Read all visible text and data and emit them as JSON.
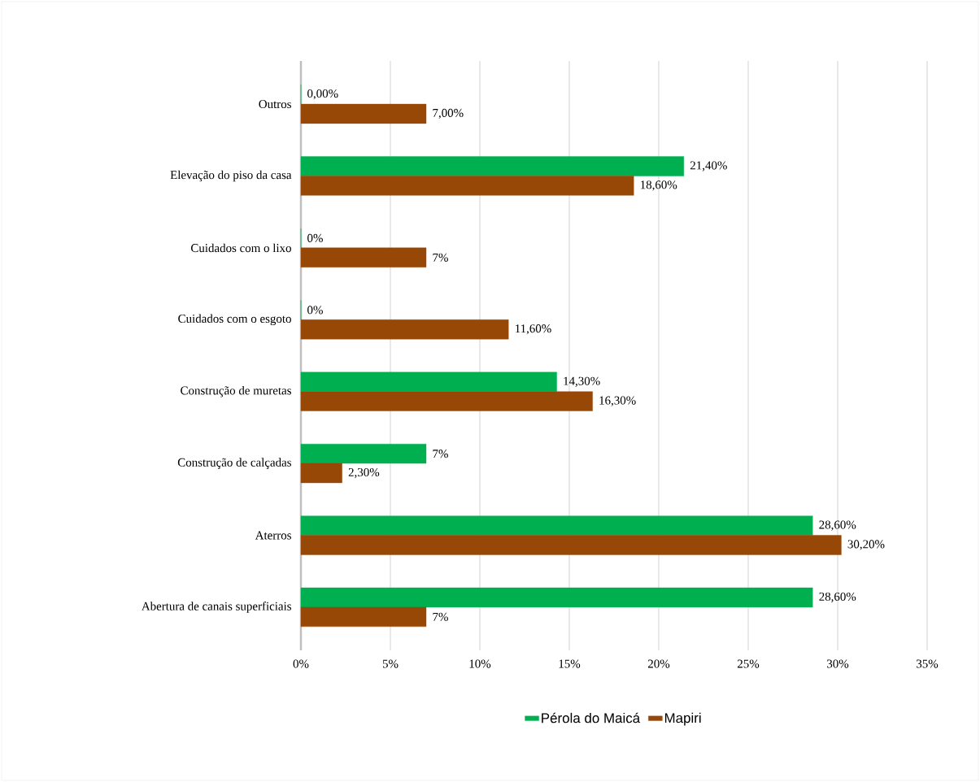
{
  "chart_data": {
    "type": "bar",
    "orientation": "horizontal",
    "categories": [
      "Outros",
      "Elevação do piso da casa",
      "Cuidados com o lixo",
      "Cuidados com o esgoto",
      "Construção de muretas",
      "Construção de calçadas",
      "Aterros",
      "Abertura de canais superficiais"
    ],
    "series": [
      {
        "name": "Pérola do Maicá",
        "color": "#00b050",
        "values": [
          0,
          21.4,
          0,
          0,
          14.3,
          7,
          28.6,
          28.6
        ],
        "value_labels": [
          "0,00%",
          "21,40%",
          "0%",
          "0%",
          "14,30%",
          "7%",
          "28,60%",
          "28,60%"
        ]
      },
      {
        "name": "Mapiri",
        "color": "#974706",
        "values": [
          7,
          18.6,
          7,
          11.6,
          16.3,
          2.3,
          30.2,
          7
        ],
        "value_labels": [
          "7,00%",
          "18,60%",
          "7%",
          "11,60%",
          "16,30%",
          "2,30%",
          "30,20%",
          "7%"
        ]
      }
    ],
    "xlim": [
      0,
      35
    ],
    "xticks": [
      {
        "value": 0,
        "label": "0%"
      },
      {
        "value": 5,
        "label": "5%"
      },
      {
        "value": 10,
        "label": "10%"
      },
      {
        "value": 15,
        "label": "15%"
      },
      {
        "value": 20,
        "label": "20%"
      },
      {
        "value": 25,
        "label": "25%"
      },
      {
        "value": 30,
        "label": "30%"
      },
      {
        "value": 35,
        "label": "35%"
      }
    ],
    "grid": "x",
    "legend": "bottom"
  }
}
